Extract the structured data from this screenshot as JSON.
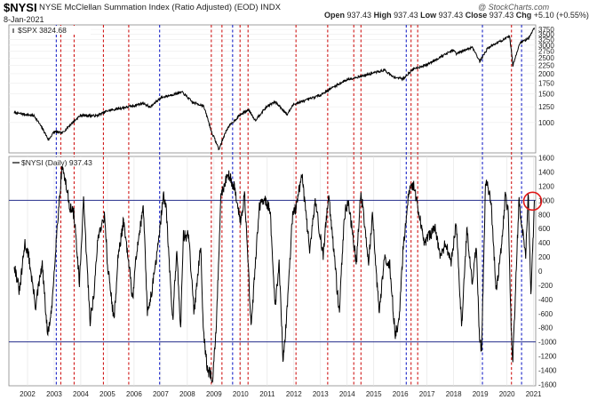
{
  "header": {
    "symbol": "$NYSI",
    "description": "NYSE McClellan Summation Index (Ratio Adjusted) (EOD)",
    "exchange": "INDX",
    "date": "8-Jan-2021",
    "credit": "@ StockCharts.com",
    "open_label": "Open",
    "open_value": "937.43",
    "high_label": "High",
    "high_value": "937.43",
    "low_label": "Low",
    "low_value": "937.43",
    "close_label": "Close",
    "close_value": "937.43",
    "chg_label": "Chg",
    "chg_value": "+5.10 (+0.55%)"
  },
  "colors": {
    "red_lines": "#d01818",
    "blue_lines": "#1a24c8",
    "hline": "#242e8c",
    "price": "#000000",
    "circle": "#e01818"
  },
  "chart_data": [
    {
      "type": "line",
      "legend": "$SPX 3824.68",
      "y_scale": "log",
      "ylim": [
        650,
        4000
      ],
      "y_ticks": [
        "3750",
        "3500",
        "3250",
        "3000",
        "2750",
        "2500",
        "2250",
        "2000",
        "1750",
        "1500",
        "1250",
        "1000"
      ],
      "x": [
        2001.5,
        2002.25,
        2002.79,
        2003.0,
        2003.3,
        2004.0,
        2004.6,
        2005.0,
        2006.0,
        2006.35,
        2006.6,
        2007.0,
        2007.8,
        2008.2,
        2008.6,
        2008.9,
        2009.19,
        2009.5,
        2010.0,
        2010.3,
        2010.55,
        2011.0,
        2011.3,
        2011.75,
        2012.0,
        2012.4,
        2013.0,
        2014.0,
        2014.8,
        2015.4,
        2015.7,
        2016.1,
        2016.5,
        2017.0,
        2018.0,
        2018.1,
        2018.7,
        2018.98,
        2019.3,
        2020.1,
        2020.22,
        2020.5,
        2020.8,
        2021.03
      ],
      "y": [
        1150,
        1100,
        780,
        880,
        860,
        1110,
        1100,
        1180,
        1270,
        1320,
        1240,
        1420,
        1540,
        1330,
        1270,
        880,
        680,
        920,
        1120,
        1200,
        1030,
        1260,
        1340,
        1120,
        1300,
        1360,
        1480,
        1840,
        1980,
        2110,
        1920,
        1860,
        2150,
        2270,
        2800,
        2650,
        2920,
        2380,
        2900,
        3380,
        2240,
        3100,
        3300,
        3824.68
      ]
    },
    {
      "type": "line",
      "legend": "$NYSI (Daily) 937.43",
      "ylim": [
        -1620,
        1620
      ],
      "y_ticks": [
        "1600",
        "1400",
        "1200",
        "1000",
        "800",
        "600",
        "400",
        "200",
        "0",
        "-200",
        "-400",
        "-600",
        "-800",
        "-1000",
        "-1200",
        "-1400",
        "-1600"
      ],
      "reference_lines": [
        1000,
        -1000
      ],
      "x": [
        2001.5,
        2001.7,
        2001.9,
        2002.05,
        2002.3,
        2002.55,
        2002.75,
        2002.9,
        2003.05,
        2003.15,
        2003.3,
        2003.6,
        2003.75,
        2003.95,
        2004.1,
        2004.35,
        2004.5,
        2004.65,
        2004.9,
        2005.0,
        2005.25,
        2005.4,
        2005.6,
        2005.8,
        2005.95,
        2006.1,
        2006.35,
        2006.5,
        2006.7,
        2006.95,
        2007.1,
        2007.2,
        2007.45,
        2007.6,
        2007.75,
        2007.85,
        2008.05,
        2008.25,
        2008.5,
        2008.6,
        2008.75,
        2008.95,
        2009.1,
        2009.25,
        2009.5,
        2009.75,
        2010.0,
        2010.15,
        2010.4,
        2010.55,
        2010.7,
        2010.9,
        2011.1,
        2011.3,
        2011.45,
        2011.6,
        2011.75,
        2011.95,
        2012.1,
        2012.3,
        2012.45,
        2012.6,
        2012.8,
        2012.95,
        2013.1,
        2013.3,
        2013.5,
        2013.7,
        2013.9,
        2014.05,
        2014.35,
        2014.5,
        2014.6,
        2014.8,
        2014.95,
        2015.2,
        2015.4,
        2015.6,
        2015.8,
        2015.95,
        2016.1,
        2016.3,
        2016.5,
        2016.65,
        2016.9,
        2017.1,
        2017.3,
        2017.5,
        2017.7,
        2017.9,
        2018.1,
        2018.3,
        2018.5,
        2018.7,
        2018.85,
        2018.97,
        2019.05,
        2019.2,
        2019.4,
        2019.6,
        2019.8,
        2019.95,
        2020.05,
        2020.15,
        2020.22,
        2020.3,
        2020.45,
        2020.55,
        2020.7,
        2020.8,
        2020.9,
        2021.03
      ],
      "y": [
        100,
        -300,
        400,
        200,
        -500,
        100,
        -900,
        -600,
        300,
        800,
        1500,
        900,
        800,
        -200,
        1000,
        -700,
        -300,
        500,
        800,
        100,
        -700,
        200,
        700,
        100,
        -400,
        300,
        900,
        -600,
        -200,
        500,
        1100,
        900,
        -700,
        300,
        -800,
        500,
        500,
        -600,
        400,
        -800,
        -1400,
        -1500,
        -700,
        1000,
        1400,
        1200,
        700,
        1100,
        -800,
        100,
        900,
        1000,
        900,
        -500,
        100,
        -1300,
        -500,
        800,
        900,
        1400,
        800,
        300,
        1000,
        600,
        200,
        1100,
        300,
        -600,
        800,
        1000,
        100,
        1100,
        900,
        100,
        800,
        -600,
        200,
        100,
        -900,
        -700,
        300,
        1100,
        1200,
        900,
        400,
        500,
        600,
        200,
        400,
        100,
        700,
        -800,
        600,
        -200,
        400,
        -1000,
        -1100,
        1300,
        1000,
        -300,
        400,
        1100,
        800,
        -700,
        -1300,
        -500,
        1000,
        700,
        200,
        1100,
        -300,
        937.43
      ]
    }
  ],
  "x_ticks": [
    "2002",
    "2003",
    "2004",
    "2005",
    "2006",
    "2007",
    "2008",
    "2009",
    "2010",
    "2011",
    "2012",
    "2013",
    "2014",
    "2015",
    "2016",
    "2017",
    "2018",
    "2019",
    "2020",
    "2021"
  ],
  "vertical_lines": {
    "red": [
      2003.25,
      2003.75,
      2004.85,
      2005.8,
      2008.9,
      2009.3,
      2009.98,
      2010.28,
      2012.08,
      2013.27,
      2014.25,
      2014.52,
      2016.4,
      2016.65,
      2020.17
    ],
    "blue": [
      2003.08,
      2006.96,
      2009.7,
      2016.22,
      2019.08,
      2020.55
    ]
  }
}
